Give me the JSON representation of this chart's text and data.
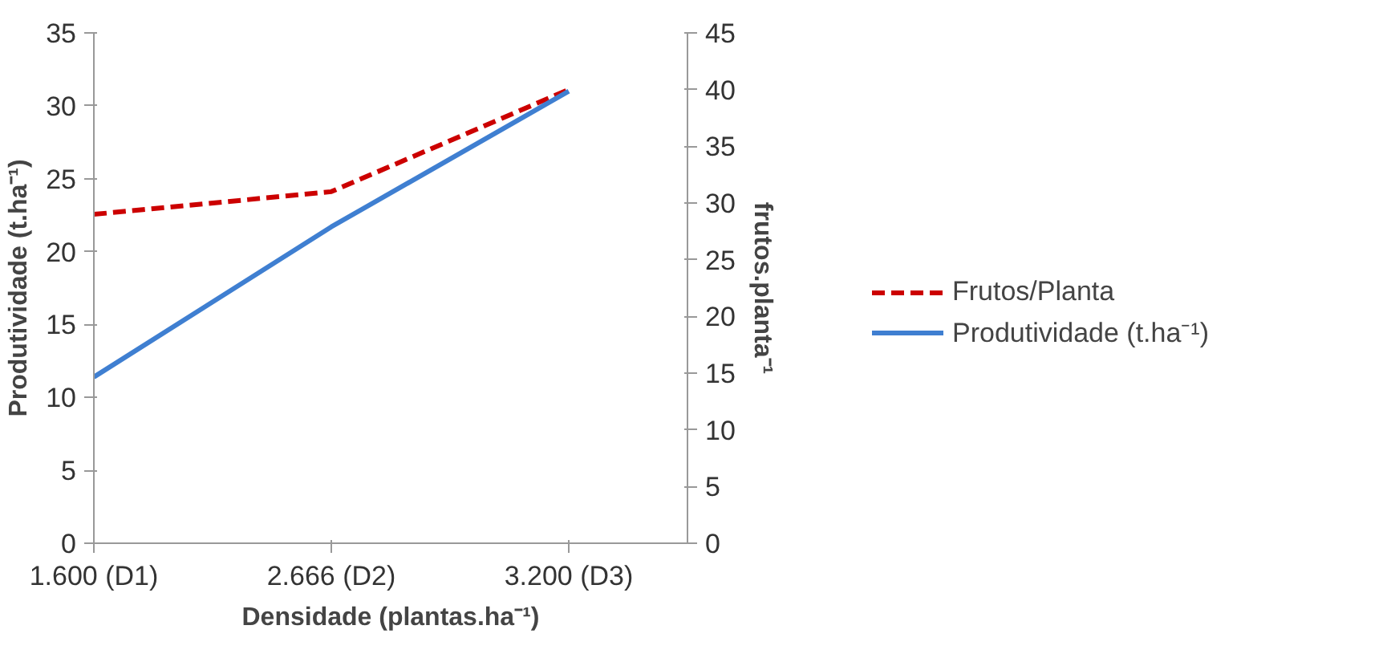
{
  "chart_data": {
    "type": "line",
    "xlabel": "Densidade (plantas.ha⁻¹)",
    "ylabel": "Produtividade (t.ha⁻¹)",
    "y2label": "frutos.planta⁻¹",
    "categories": [
      "1.600 (D1)",
      "2.666 (D2)",
      "3.200 (D3)"
    ],
    "series": [
      {
        "name": "Frutos/Planta",
        "color": "#cc0000",
        "values": [
          29,
          31,
          40
        ],
        "axis": "y2",
        "line_style": "dashed"
      },
      {
        "name": "Produtividade (t.ha⁻¹)",
        "color": "#3f7fd1",
        "values": [
          11.4,
          21.7,
          31.0
        ],
        "line_style": "solid"
      }
    ],
    "ylim": [
      0,
      35
    ],
    "yticks": [
      0,
      5,
      10,
      15,
      20,
      25,
      30,
      35
    ],
    "y2lim": [
      0,
      45
    ],
    "y2ticks": [
      0,
      5,
      10,
      15,
      20,
      25,
      30,
      35,
      40,
      45
    ],
    "grid": false,
    "legend": "right",
    "marker": "none"
  }
}
